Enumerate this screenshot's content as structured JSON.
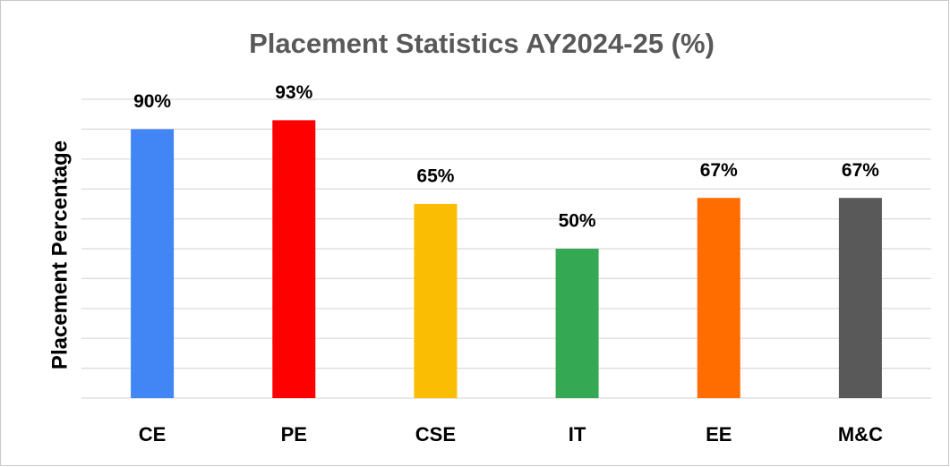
{
  "chart_data": {
    "type": "bar",
    "title": "Placement Statistics AY2024-25 (%)",
    "y_label": "Placement Percentage",
    "categories": [
      "CE",
      "PE",
      "CSE",
      "IT",
      "EE",
      "M&C"
    ],
    "values": [
      90,
      93,
      65,
      50,
      67,
      67
    ],
    "value_labels": [
      "90%",
      "93%",
      "65%",
      "50%",
      "67%",
      "67%"
    ],
    "colors": [
      "#4285f4",
      "#ff0000",
      "#fbbc04",
      "#34a853",
      "#ff6d01",
      "#595959"
    ],
    "ylim": [
      0,
      100
    ],
    "yticks": [
      0,
      10,
      20,
      30,
      40,
      50,
      60,
      70,
      80,
      90,
      100
    ],
    "grid": true
  }
}
